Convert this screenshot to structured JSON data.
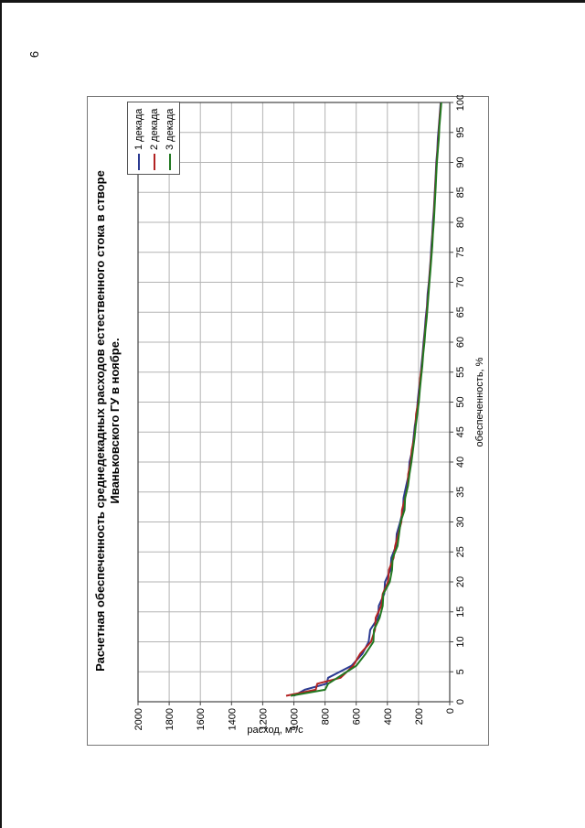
{
  "page": {
    "page_number": "6"
  },
  "chart": {
    "title_line1": "Расчетная обеспеченность среднедекадных расходов естественного стока в створе",
    "title_line2": "Иваньковского ГУ в ноябре."
  },
  "chart_data": {
    "type": "line",
    "title": "Расчетная обеспеченность среднедекадных расходов естественного стока в створе Иваньковского ГУ в ноябре.",
    "xlabel": "обеспеченность, %",
    "ylabel": "расход, м³/с",
    "xlim": [
      0,
      100
    ],
    "ylim": [
      0,
      2000
    ],
    "x_ticks": [
      0,
      5,
      10,
      15,
      20,
      25,
      30,
      35,
      40,
      45,
      50,
      55,
      60,
      65,
      70,
      75,
      80,
      85,
      90,
      95,
      100
    ],
    "y_ticks": [
      0,
      200,
      400,
      600,
      800,
      1000,
      1200,
      1400,
      1600,
      1800,
      2000
    ],
    "grid": true,
    "legend_position": "top-right-inside",
    "series": [
      {
        "name": "1 декада",
        "color": "#2b3a91",
        "points": [
          [
            1,
            1000
          ],
          [
            2,
            930
          ],
          [
            3,
            790
          ],
          [
            4,
            780
          ],
          [
            6,
            630
          ],
          [
            8,
            560
          ],
          [
            10,
            520
          ],
          [
            12,
            510
          ],
          [
            14,
            460
          ],
          [
            16,
            455
          ],
          [
            18,
            420
          ],
          [
            20,
            415
          ],
          [
            22,
            380
          ],
          [
            24,
            375
          ],
          [
            26,
            345
          ],
          [
            28,
            340
          ],
          [
            30,
            318
          ],
          [
            32,
            300
          ],
          [
            34,
            296
          ],
          [
            36,
            280
          ],
          [
            38,
            262
          ],
          [
            40,
            258
          ],
          [
            42,
            240
          ],
          [
            44,
            232
          ],
          [
            46,
            224
          ],
          [
            48,
            212
          ],
          [
            50,
            206
          ],
          [
            52,
            198
          ],
          [
            54,
            188
          ],
          [
            56,
            182
          ],
          [
            58,
            174
          ],
          [
            60,
            168
          ],
          [
            62,
            160
          ],
          [
            64,
            154
          ],
          [
            66,
            146
          ],
          [
            68,
            142
          ],
          [
            70,
            134
          ],
          [
            72,
            128
          ],
          [
            74,
            122
          ],
          [
            76,
            118
          ],
          [
            78,
            112
          ],
          [
            80,
            108
          ],
          [
            82,
            102
          ],
          [
            84,
            98
          ],
          [
            86,
            94
          ],
          [
            88,
            90
          ],
          [
            90,
            86
          ],
          [
            92,
            80
          ],
          [
            94,
            76
          ],
          [
            96,
            70
          ],
          [
            98,
            64
          ],
          [
            100,
            58
          ]
        ]
      },
      {
        "name": "2 декада",
        "color": "#b22222",
        "points": [
          [
            1,
            1050
          ],
          [
            2,
            860
          ],
          [
            3,
            850
          ],
          [
            4,
            700
          ],
          [
            6,
            620
          ],
          [
            8,
            575
          ],
          [
            10,
            505
          ],
          [
            12,
            480
          ],
          [
            14,
            475
          ],
          [
            16,
            440
          ],
          [
            18,
            430
          ],
          [
            20,
            396
          ],
          [
            22,
            390
          ],
          [
            24,
            360
          ],
          [
            26,
            350
          ],
          [
            28,
            330
          ],
          [
            30,
            310
          ],
          [
            32,
            306
          ],
          [
            34,
            286
          ],
          [
            36,
            270
          ],
          [
            38,
            266
          ],
          [
            40,
            250
          ],
          [
            42,
            244
          ],
          [
            44,
            228
          ],
          [
            46,
            220
          ],
          [
            48,
            216
          ],
          [
            50,
            202
          ],
          [
            52,
            194
          ],
          [
            54,
            190
          ],
          [
            56,
            178
          ],
          [
            58,
            172
          ],
          [
            60,
            164
          ],
          [
            62,
            158
          ],
          [
            64,
            150
          ],
          [
            66,
            144
          ],
          [
            68,
            138
          ],
          [
            70,
            132
          ],
          [
            72,
            126
          ],
          [
            74,
            120
          ],
          [
            76,
            114
          ],
          [
            78,
            110
          ],
          [
            80,
            104
          ],
          [
            82,
            100
          ],
          [
            84,
            96
          ],
          [
            86,
            92
          ],
          [
            88,
            88
          ],
          [
            90,
            84
          ],
          [
            92,
            78
          ],
          [
            94,
            72
          ],
          [
            96,
            68
          ],
          [
            98,
            62
          ],
          [
            100,
            56
          ]
        ]
      },
      {
        "name": "3 декада",
        "color": "#217821",
        "points": [
          [
            1,
            1020
          ],
          [
            2,
            800
          ],
          [
            3,
            780
          ],
          [
            4,
            720
          ],
          [
            6,
            600
          ],
          [
            8,
            540
          ],
          [
            10,
            490
          ],
          [
            12,
            486
          ],
          [
            14,
            450
          ],
          [
            16,
            430
          ],
          [
            18,
            426
          ],
          [
            20,
            385
          ],
          [
            22,
            370
          ],
          [
            24,
            366
          ],
          [
            26,
            335
          ],
          [
            28,
            325
          ],
          [
            30,
            315
          ],
          [
            32,
            290
          ],
          [
            34,
            286
          ],
          [
            36,
            268
          ],
          [
            38,
            258
          ],
          [
            40,
            246
          ],
          [
            42,
            236
          ],
          [
            44,
            226
          ],
          [
            46,
            218
          ],
          [
            48,
            208
          ],
          [
            50,
            198
          ],
          [
            52,
            192
          ],
          [
            54,
            184
          ],
          [
            56,
            176
          ],
          [
            58,
            170
          ],
          [
            60,
            162
          ],
          [
            62,
            156
          ],
          [
            64,
            148
          ],
          [
            66,
            142
          ],
          [
            68,
            136
          ],
          [
            70,
            130
          ],
          [
            72,
            124
          ],
          [
            74,
            118
          ],
          [
            76,
            112
          ],
          [
            78,
            108
          ],
          [
            80,
            102
          ],
          [
            82,
            98
          ],
          [
            84,
            94
          ],
          [
            86,
            90
          ],
          [
            88,
            86
          ],
          [
            90,
            82
          ],
          [
            92,
            76
          ],
          [
            94,
            70
          ],
          [
            96,
            66
          ],
          [
            98,
            60
          ],
          [
            100,
            54
          ]
        ]
      }
    ]
  }
}
